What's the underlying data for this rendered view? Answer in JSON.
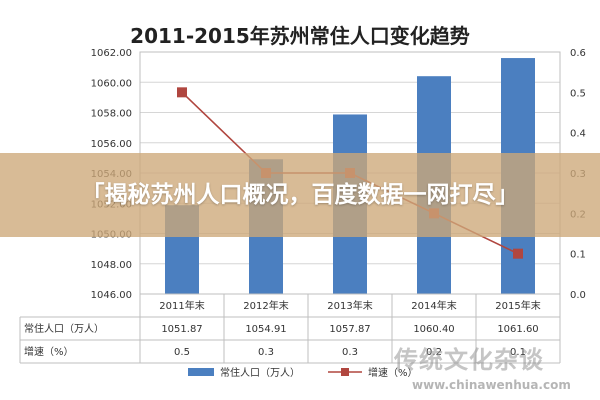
{
  "banner_text": "「揭秘苏州人口概况，百度数据一网打尽」",
  "watermark": {
    "text": "传统文化杂谈",
    "url": "www.chinawenhua.com"
  },
  "chart_data": {
    "type": "bar",
    "title": "2011-2015年苏州常住人口变化趋势",
    "categories": [
      "2011年末",
      "2012年末",
      "2013年末",
      "2014年末",
      "2015年末"
    ],
    "series": [
      {
        "name": "常住人口（万人）",
        "type": "bar",
        "axis": "left",
        "color": "#4b7fc0",
        "values": [
          1051.87,
          1054.91,
          1057.87,
          1060.4,
          1061.6
        ]
      },
      {
        "name": "增速（%）",
        "type": "line",
        "axis": "right",
        "color": "#b0463f",
        "values": [
          0.5,
          0.3,
          0.3,
          0.2,
          0.1
        ]
      }
    ],
    "left_axis": {
      "min": 1046,
      "max": 1062,
      "step": 2,
      "ticks": [
        "1046.00",
        "1048.00",
        "1050.00",
        "1052.00",
        "1054.00",
        "1056.00",
        "1058.00",
        "1060.00",
        "1062.00"
      ]
    },
    "right_axis": {
      "min": 0,
      "max": 0.6,
      "step": 0.1,
      "ticks": [
        "0.0",
        "0.1",
        "0.2",
        "0.3",
        "0.4",
        "0.5",
        "0.6"
      ]
    },
    "table_rows": [
      {
        "label": "常住人口（万人）",
        "cells": [
          "1051.87",
          "1054.91",
          "1057.87",
          "1060.40",
          "1061.60"
        ]
      },
      {
        "label": "增速（%）",
        "cells": [
          "0.5",
          "0.3",
          "0.3",
          "0.2",
          "0.1"
        ]
      }
    ],
    "legend_position": "bottom-center",
    "grid": true
  }
}
